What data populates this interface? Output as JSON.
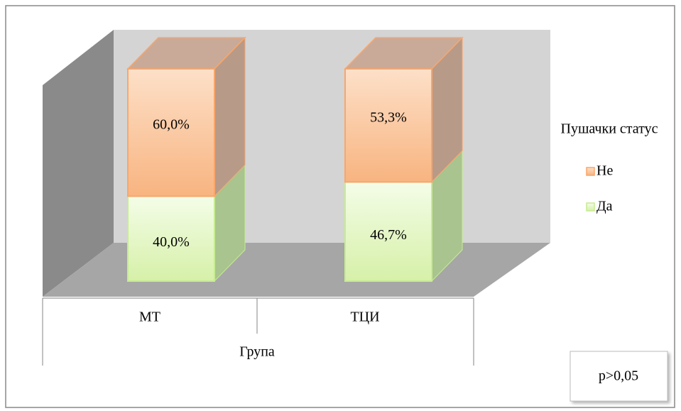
{
  "chart_data": {
    "type": "stacked_bar_3d",
    "categories": [
      "МТ",
      "ТЦИ"
    ],
    "x_label": "Група",
    "legend_title": "Пушачки статус",
    "ylim": [
      0,
      100
    ],
    "series": [
      {
        "name": "Да",
        "color": "#c6ec92",
        "values": [
          40,
          46.7
        ],
        "value_labels": [
          "40,0%",
          "46,7%"
        ]
      },
      {
        "name": "Не",
        "color": "#f9a66c",
        "values": [
          60,
          53.3
        ],
        "value_labels": [
          "60,0%",
          "53,3%"
        ]
      }
    ],
    "annotation": "p>0,05"
  }
}
